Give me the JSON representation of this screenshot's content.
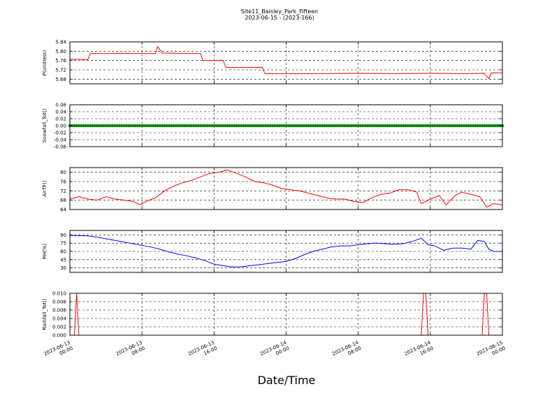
{
  "figure": {
    "title": "Site11_Baisley_Park_Fifteen",
    "subtitle": "2023-06-15 - (2023-166)",
    "xlabel": "Date/Time",
    "x_ticks": [
      {
        "value": "2023-06-13 00:00",
        "line1": "2023-06-13",
        "line2": "00:00"
      },
      {
        "value": "2023-06-13 08:00",
        "line1": "2023-06-13",
        "line2": "08:00"
      },
      {
        "value": "2023-06-13 16:00",
        "line1": "2023-06-13",
        "line2": "16:00"
      },
      {
        "value": "2023-06-14 00:00",
        "line1": "2023-06-14",
        "line2": "00:00"
      },
      {
        "value": "2023-06-14 08:00",
        "line1": "2023-06-14",
        "line2": "08:00"
      },
      {
        "value": "2023-06-14 16:00",
        "line1": "2023-06-14",
        "line2": "16:00"
      },
      {
        "value": "2023-06-15 00:00",
        "line1": "2023-06-15",
        "line2": "00:00"
      }
    ],
    "xlim": [
      "2023-06-13 00:00",
      "2023-06-15 00:00"
    ],
    "grid": true
  },
  "chart_data": [
    {
      "type": "line",
      "ylabel": "P(unitless)",
      "ylim": [
        5.66,
        5.84
      ],
      "yticks": [
        "5.68",
        "5.72",
        "5.76",
        "5.80",
        "5.84"
      ],
      "color": "#ff0000",
      "series": [
        {
          "points": [
            [
              "2023-06-13 00:00",
              5.765
            ],
            [
              "2023-06-13 01:00",
              5.765
            ],
            [
              "2023-06-13 02:00",
              5.764
            ],
            [
              "2023-06-13 02:15",
              5.79
            ],
            [
              "2023-06-13 04:00",
              5.79
            ],
            [
              "2023-06-13 06:00",
              5.791
            ],
            [
              "2023-06-13 08:00",
              5.79
            ],
            [
              "2023-06-13 09:30",
              5.79
            ],
            [
              "2023-06-13 09:45",
              5.82
            ],
            [
              "2023-06-13 10:15",
              5.792
            ],
            [
              "2023-06-13 12:00",
              5.791
            ],
            [
              "2023-06-13 14:30",
              5.79
            ],
            [
              "2023-06-13 14:45",
              5.76
            ],
            [
              "2023-06-13 17:00",
              5.761
            ],
            [
              "2023-06-13 17:20",
              5.73
            ],
            [
              "2023-06-13 19:00",
              5.73
            ],
            [
              "2023-06-13 21:20",
              5.731
            ],
            [
              "2023-06-13 21:40",
              5.703
            ],
            [
              "2023-06-14 00:00",
              5.703
            ],
            [
              "2023-06-14 04:00",
              5.704
            ],
            [
              "2023-06-14 08:00",
              5.705
            ],
            [
              "2023-06-14 12:00",
              5.704
            ],
            [
              "2023-06-14 16:00",
              5.705
            ],
            [
              "2023-06-14 20:00",
              5.704
            ],
            [
              "2023-06-14 22:00",
              5.705
            ],
            [
              "2023-06-14 22:30",
              5.682
            ],
            [
              "2023-06-14 22:45",
              5.707
            ],
            [
              "2023-06-15 00:00",
              5.707
            ]
          ]
        }
      ]
    },
    {
      "type": "scatter",
      "ylabel": "Snowfall_Tot()",
      "ylim": [
        -0.06,
        0.06
      ],
      "yticks": [
        "-0.06",
        "-0.04",
        "-0.02",
        "0.00",
        "0.02",
        "0.04",
        "0.06"
      ],
      "color": "#008000",
      "series": [
        {
          "constant": 0.0,
          "interval_minutes": 15
        }
      ]
    },
    {
      "type": "line",
      "ylabel": "AirTF()",
      "ylim": [
        64,
        82
      ],
      "yticks": [
        "64",
        "68",
        "72",
        "76",
        "80"
      ],
      "color": "#ff0000",
      "series": [
        {
          "points": [
            [
              "2023-06-13 00:00",
              68.5
            ],
            [
              "2023-06-13 01:00",
              69.5
            ],
            [
              "2023-06-13 02:00",
              68.5
            ],
            [
              "2023-06-13 03:00",
              68.0
            ],
            [
              "2023-06-13 04:00",
              69.5
            ],
            [
              "2023-06-13 05:00",
              68.5
            ],
            [
              "2023-06-13 06:00",
              68.0
            ],
            [
              "2023-06-13 07:00",
              67.5
            ],
            [
              "2023-06-13 07:45",
              66.0
            ],
            [
              "2023-06-13 08:30",
              67.5
            ],
            [
              "2023-06-13 09:30",
              69.0
            ],
            [
              "2023-06-13 10:30",
              72.0
            ],
            [
              "2023-06-13 11:30",
              74.0
            ],
            [
              "2023-06-13 12:30",
              75.5
            ],
            [
              "2023-06-13 13:30",
              76.5
            ],
            [
              "2023-06-13 14:30",
              78.0
            ],
            [
              "2023-06-13 15:30",
              79.5
            ],
            [
              "2023-06-13 16:30",
              80.0
            ],
            [
              "2023-06-13 17:30",
              81.0
            ],
            [
              "2023-06-13 18:30",
              79.5
            ],
            [
              "2023-06-13 19:30",
              78.0
            ],
            [
              "2023-06-13 20:30",
              76.0
            ],
            [
              "2023-06-13 21:30",
              75.5
            ],
            [
              "2023-06-13 22:30",
              74.5
            ],
            [
              "2023-06-13 23:30",
              73.0
            ],
            [
              "2023-06-14 00:30",
              72.5
            ],
            [
              "2023-06-14 01:30",
              72.0
            ],
            [
              "2023-06-14 02:30",
              71.0
            ],
            [
              "2023-06-14 03:30",
              70.0
            ],
            [
              "2023-06-14 04:30",
              69.0
            ],
            [
              "2023-06-14 05:30",
              68.5
            ],
            [
              "2023-06-14 06:30",
              68.5
            ],
            [
              "2023-06-14 07:30",
              67.5
            ],
            [
              "2023-06-14 08:30",
              67.0
            ],
            [
              "2023-06-14 09:30",
              69.0
            ],
            [
              "2023-06-14 10:30",
              70.5
            ],
            [
              "2023-06-14 11:30",
              71.0
            ],
            [
              "2023-06-14 12:30",
              72.5
            ],
            [
              "2023-06-14 13:30",
              72.5
            ],
            [
              "2023-06-14 14:30",
              71.5
            ],
            [
              "2023-06-14 15:00",
              66.5
            ],
            [
              "2023-06-14 16:00",
              68.5
            ],
            [
              "2023-06-14 17:00",
              70.0
            ],
            [
              "2023-06-14 17:45",
              66.0
            ],
            [
              "2023-06-14 18:45",
              70.0
            ],
            [
              "2023-06-14 19:30",
              71.5
            ],
            [
              "2023-06-14 20:30",
              70.5
            ],
            [
              "2023-06-14 21:30",
              69.5
            ],
            [
              "2023-06-14 22:15",
              65.0
            ],
            [
              "2023-06-14 23:00",
              66.5
            ],
            [
              "2023-06-15 00:00",
              66.0
            ]
          ]
        }
      ]
    },
    {
      "type": "line",
      "ylabel": "RH(%)",
      "ylim": [
        22,
        98
      ],
      "yticks": [
        "30",
        "45",
        "60",
        "75",
        "90"
      ],
      "color": "#0000ff",
      "series": [
        {
          "points": [
            [
              "2023-06-13 00:00",
              89
            ],
            [
              "2023-06-13 02:00",
              88
            ],
            [
              "2023-06-13 03:00",
              86
            ],
            [
              "2023-06-13 04:00",
              83
            ],
            [
              "2023-06-13 05:00",
              80
            ],
            [
              "2023-06-13 06:00",
              77
            ],
            [
              "2023-06-13 07:00",
              74
            ],
            [
              "2023-06-13 08:00",
              71
            ],
            [
              "2023-06-13 09:00",
              68
            ],
            [
              "2023-06-13 10:00",
              64
            ],
            [
              "2023-06-13 11:00",
              59
            ],
            [
              "2023-06-13 12:00",
              55
            ],
            [
              "2023-06-13 13:00",
              52
            ],
            [
              "2023-06-13 14:00",
              48
            ],
            [
              "2023-06-13 15:00",
              43
            ],
            [
              "2023-06-13 16:00",
              37
            ],
            [
              "2023-06-13 17:00",
              34
            ],
            [
              "2023-06-13 18:00",
              32
            ],
            [
              "2023-06-13 19:00",
              32
            ],
            [
              "2023-06-13 20:00",
              34
            ],
            [
              "2023-06-13 21:00",
              36
            ],
            [
              "2023-06-13 22:00",
              38
            ],
            [
              "2023-06-13 23:00",
              40
            ],
            [
              "2023-06-14 00:00",
              42
            ],
            [
              "2023-06-14 01:00",
              47
            ],
            [
              "2023-06-14 02:00",
              54
            ],
            [
              "2023-06-14 03:00",
              60
            ],
            [
              "2023-06-14 04:00",
              64
            ],
            [
              "2023-06-14 05:00",
              68
            ],
            [
              "2023-06-14 06:00",
              70
            ],
            [
              "2023-06-14 07:00",
              70
            ],
            [
              "2023-06-14 08:00",
              72
            ],
            [
              "2023-06-14 09:00",
              74
            ],
            [
              "2023-06-14 10:00",
              75
            ],
            [
              "2023-06-14 11:00",
              74
            ],
            [
              "2023-06-14 12:00",
              73
            ],
            [
              "2023-06-14 13:00",
              74
            ],
            [
              "2023-06-14 14:00",
              78
            ],
            [
              "2023-06-14 15:00",
              84
            ],
            [
              "2023-06-14 15:45",
              72
            ],
            [
              "2023-06-14 16:30",
              70
            ],
            [
              "2023-06-14 17:30",
              62
            ],
            [
              "2023-06-14 18:30",
              66
            ],
            [
              "2023-06-14 19:30",
              66
            ],
            [
              "2023-06-14 20:30",
              64
            ],
            [
              "2023-06-14 21:15",
              80
            ],
            [
              "2023-06-14 22:00",
              78
            ],
            [
              "2023-06-14 22:30",
              64
            ],
            [
              "2023-06-14 23:00",
              60
            ],
            [
              "2023-06-15 00:00",
              60
            ]
          ]
        }
      ]
    },
    {
      "type": "line",
      "ylabel": "Rainfall_Tot()",
      "ylim": [
        0.0,
        0.01
      ],
      "yticks": [
        "0.000",
        "0.002",
        "0.004",
        "0.006",
        "0.008",
        "0.010"
      ],
      "color": "#ff0000",
      "series": [
        {
          "points": [
            [
              "2023-06-13 00:00",
              0
            ],
            [
              "2023-06-13 00:30",
              0
            ],
            [
              "2023-06-13 00:45",
              0.01
            ],
            [
              "2023-06-13 01:00",
              0
            ],
            [
              "2023-06-14 15:00",
              0
            ],
            [
              "2023-06-14 15:15",
              0.01
            ],
            [
              "2023-06-14 15:30",
              0.01
            ],
            [
              "2023-06-14 15:45",
              0
            ],
            [
              "2023-06-14 21:45",
              0
            ],
            [
              "2023-06-14 22:00",
              0.01
            ],
            [
              "2023-06-14 22:15",
              0.01
            ],
            [
              "2023-06-14 22:30",
              0
            ],
            [
              "2023-06-15 00:00",
              0
            ]
          ]
        }
      ]
    }
  ]
}
